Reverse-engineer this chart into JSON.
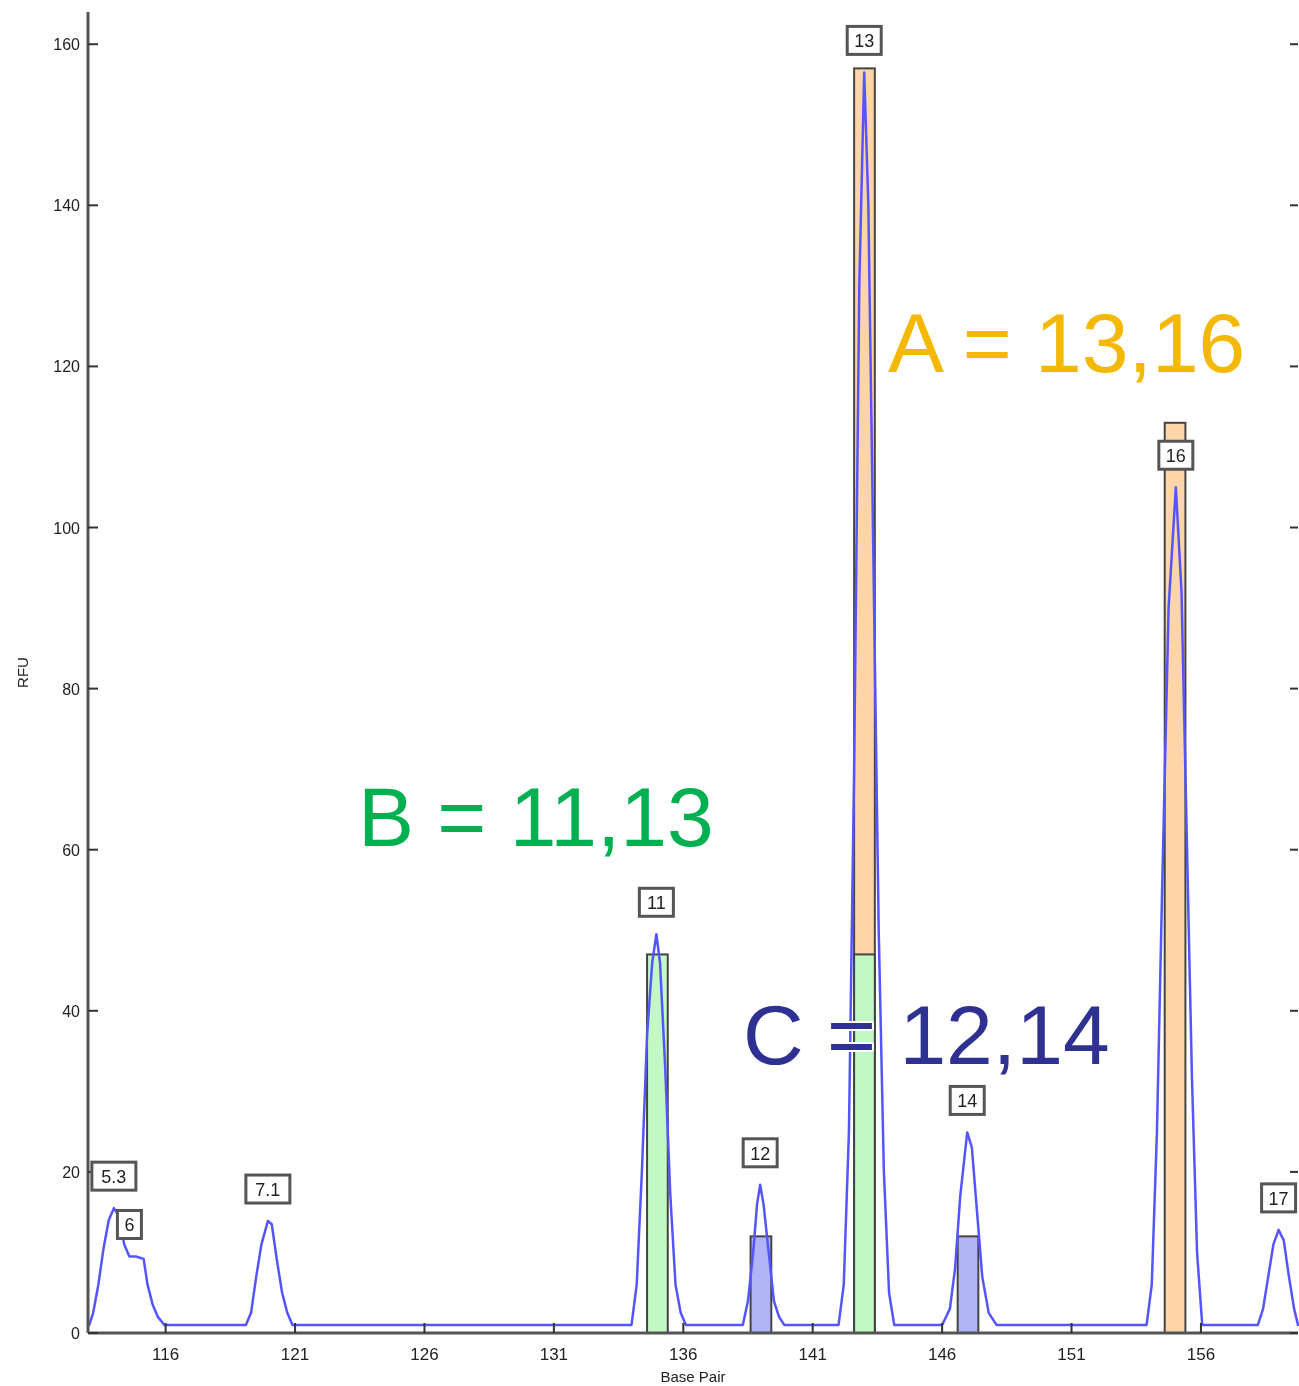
{
  "chart_data": {
    "type": "line",
    "xlabel": "Base Pair",
    "ylabel": "RFU",
    "xlim": [
      113,
      159.75
    ],
    "ylim": [
      0,
      164
    ],
    "xticks": [
      116,
      121,
      126,
      131,
      136,
      141,
      146,
      151,
      156
    ],
    "yticks": [
      0,
      20,
      40,
      60,
      80,
      100,
      120,
      140,
      160
    ],
    "grid": false,
    "marker": "none",
    "line_style": "solid",
    "series": [
      {
        "type": "bar",
        "color": "#fdd5a8",
        "x": [
          143,
          155
        ],
        "values": [
          157,
          113
        ]
      },
      {
        "type": "bar",
        "color": "#c3f7c3",
        "x": [
          135,
          143
        ],
        "values": [
          47,
          47
        ]
      },
      {
        "type": "bar",
        "color": "#b0b4f6",
        "x": [
          139,
          147
        ],
        "values": [
          12,
          12
        ]
      },
      {
        "color": "#5555ff",
        "x": [
          113.05,
          113.2,
          113.4,
          113.6,
          113.8,
          114.0,
          114.2,
          114.4,
          114.6,
          114.85,
          115.15,
          115.3,
          115.5,
          115.7,
          115.95,
          119.1,
          119.3,
          119.5,
          119.7,
          119.95,
          120.1,
          120.3,
          120.5,
          120.7,
          120.9,
          134.0,
          134.2,
          134.4,
          134.6,
          134.8,
          134.96,
          135.1,
          135.3,
          135.5,
          135.7,
          135.9,
          136.1,
          138.3,
          138.5,
          138.7,
          138.85,
          138.97,
          139.1,
          139.3,
          139.5,
          139.7,
          139.9,
          142.0,
          142.2,
          142.4,
          142.6,
          142.8,
          142.99,
          143.15,
          143.35,
          143.55,
          143.75,
          143.95,
          144.15,
          146.0,
          146.3,
          146.5,
          146.7,
          146.97,
          147.15,
          147.35,
          147.55,
          147.8,
          148.1,
          153.9,
          154.1,
          154.3,
          154.5,
          154.75,
          155.03,
          155.25,
          155.45,
          155.65,
          155.85,
          156.05,
          158.2,
          158.4,
          158.6,
          158.8,
          159.0,
          159.2,
          159.4,
          159.6,
          159.75
        ],
        "values": [
          1,
          2.5,
          6,
          10.5,
          14,
          15.5,
          14.5,
          11,
          9.5,
          9.5,
          9.2,
          6,
          3.5,
          2,
          1,
          1,
          2.5,
          7,
          11,
          13.9,
          13.5,
          9,
          5,
          2.5,
          1,
          1,
          6,
          20,
          37,
          46,
          49.5,
          46,
          33,
          17,
          6,
          2.5,
          1,
          1,
          4,
          10,
          16,
          18.4,
          16,
          10,
          4,
          2,
          1,
          1,
          6,
          25,
          70,
          130,
          156.5,
          140,
          95,
          50,
          20,
          5,
          1,
          1,
          3,
          8,
          17,
          24.9,
          23,
          15,
          7,
          2.5,
          1,
          1,
          6,
          25,
          55,
          90,
          105,
          92,
          62,
          32,
          10,
          1,
          1,
          3,
          7,
          11,
          12.8,
          11.5,
          7,
          3,
          1
        ]
      }
    ],
    "annotations": [
      {
        "text": "5.3",
        "x": 114.0,
        "y": 15.5
      },
      {
        "text": "6",
        "x": 114.6,
        "y": 9.5
      },
      {
        "text": "7.1",
        "x": 119.95,
        "y": 13.9
      },
      {
        "text": "11",
        "x": 134.96,
        "y": 49.5
      },
      {
        "text": "12",
        "x": 138.97,
        "y": 18.4
      },
      {
        "text": "13",
        "x": 142.99,
        "y": 156.5
      },
      {
        "text": "14",
        "x": 146.97,
        "y": 24.9
      },
      {
        "text": "16",
        "x": 155.03,
        "y": 105
      },
      {
        "text": "17",
        "x": 159.0,
        "y": 12.8
      },
      "A = 13,16",
      "B = 11,13",
      "C = 12,14"
    ]
  }
}
